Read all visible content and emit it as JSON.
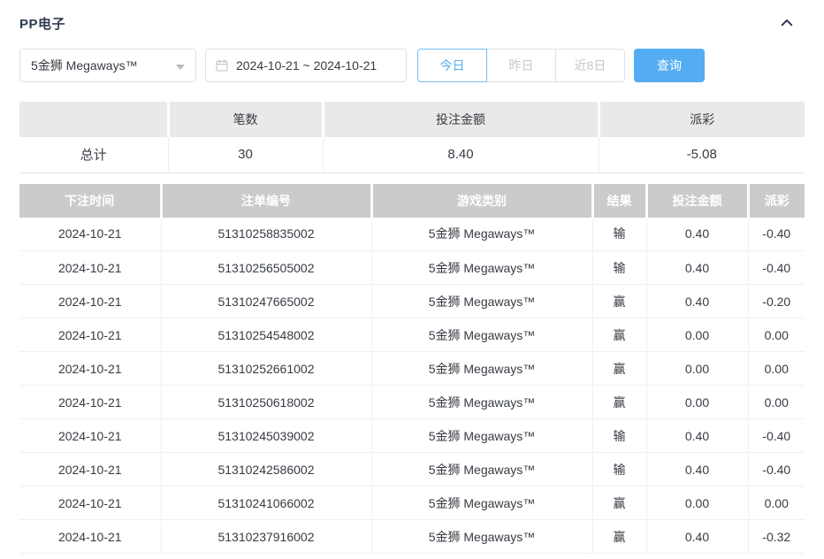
{
  "header": {
    "title": "PP电子",
    "collapse_icon": "chevron-up-icon"
  },
  "filters": {
    "game_select": {
      "value": "5金狮 Megaways™"
    },
    "date_range": {
      "value": "2024-10-21 ~ 2024-10-21",
      "icon": "calendar-icon"
    },
    "quick_buttons": [
      {
        "label": "今日",
        "active": true
      },
      {
        "label": "昨日",
        "active": false
      },
      {
        "label": "近8日",
        "active": false
      }
    ],
    "search_label": "查询"
  },
  "summary_table": {
    "columns": [
      "",
      "笔数",
      "投注金额",
      "派彩"
    ],
    "row": {
      "label": "总计",
      "count": "30",
      "bet_amount": "8.40",
      "payout": "-5.08"
    }
  },
  "records_table": {
    "columns": [
      "下注时间",
      "注单编号",
      "游戏类别",
      "结果",
      "投注金额",
      "派彩"
    ],
    "rows": [
      {
        "date": "2024-10-21",
        "order_id": "51310258835002",
        "game": "5金狮 Megaways™",
        "result": "输",
        "bet": "0.40",
        "payout": "-0.40"
      },
      {
        "date": "2024-10-21",
        "order_id": "51310256505002",
        "game": "5金狮 Megaways™",
        "result": "输",
        "bet": "0.40",
        "payout": "-0.40"
      },
      {
        "date": "2024-10-21",
        "order_id": "51310247665002",
        "game": "5金狮 Megaways™",
        "result": "赢",
        "bet": "0.40",
        "payout": "-0.20"
      },
      {
        "date": "2024-10-21",
        "order_id": "51310254548002",
        "game": "5金狮 Megaways™",
        "result": "赢",
        "bet": "0.00",
        "payout": "0.00"
      },
      {
        "date": "2024-10-21",
        "order_id": "51310252661002",
        "game": "5金狮 Megaways™",
        "result": "赢",
        "bet": "0.00",
        "payout": "0.00"
      },
      {
        "date": "2024-10-21",
        "order_id": "51310250618002",
        "game": "5金狮 Megaways™",
        "result": "赢",
        "bet": "0.00",
        "payout": "0.00"
      },
      {
        "date": "2024-10-21",
        "order_id": "51310245039002",
        "game": "5金狮 Megaways™",
        "result": "输",
        "bet": "0.40",
        "payout": "-0.40"
      },
      {
        "date": "2024-10-21",
        "order_id": "51310242586002",
        "game": "5金狮 Megaways™",
        "result": "输",
        "bet": "0.40",
        "payout": "-0.40"
      },
      {
        "date": "2024-10-21",
        "order_id": "51310241066002",
        "game": "5金狮 Megaways™",
        "result": "赢",
        "bet": "0.00",
        "payout": "0.00"
      },
      {
        "date": "2024-10-21",
        "order_id": "51310237916002",
        "game": "5金狮 Megaways™",
        "result": "赢",
        "bet": "0.40",
        "payout": "-0.32"
      }
    ]
  },
  "colors": {
    "accent": "#54adf2",
    "active_blue": "#53aef3",
    "negative_red": "#f45b5b",
    "header_gray": "#cbcbcb",
    "summary_header_gray": "#e9e9e9",
    "title_navy": "#2e3b52"
  }
}
